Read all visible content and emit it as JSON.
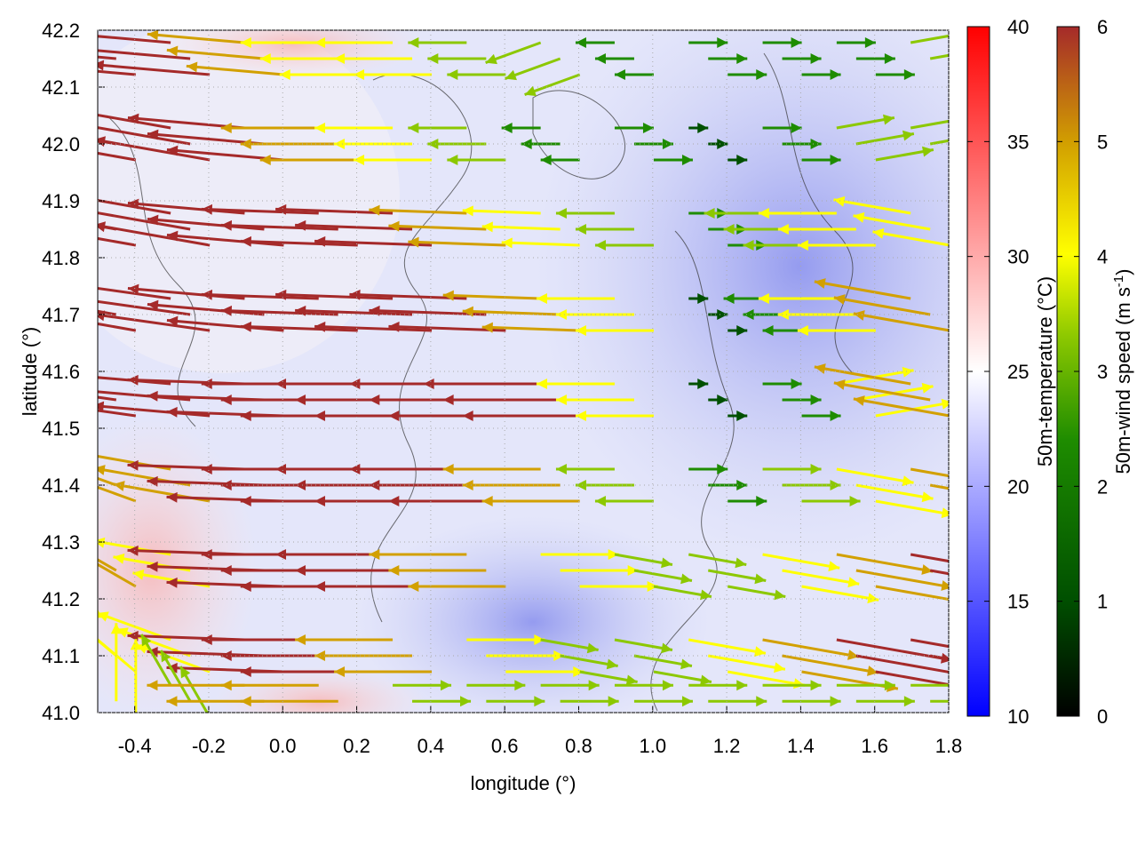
{
  "chart_data": {
    "type": "vector-field-heatmap",
    "xlabel": "longitude (°)",
    "ylabel": "latitude (°)",
    "xlim": [
      -0.5,
      1.8
    ],
    "ylim": [
      41.0,
      42.2
    ],
    "xticks": [
      "-0.4",
      "-0.2",
      "0.0",
      "0.2",
      "0.4",
      "0.6",
      "0.8",
      "1.0",
      "1.2",
      "1.4",
      "1.6",
      "1.8"
    ],
    "xtick_values": [
      -0.4,
      -0.2,
      0.0,
      0.2,
      0.4,
      0.6,
      0.8,
      1.0,
      1.2,
      1.4,
      1.6,
      1.8
    ],
    "yticks": [
      "41.0",
      "41.1",
      "41.2",
      "41.3",
      "41.4",
      "41.5",
      "41.6",
      "41.7",
      "41.8",
      "41.9",
      "42.0",
      "42.1",
      "42.2"
    ],
    "ytick_values": [
      41.0,
      41.1,
      41.2,
      41.3,
      41.4,
      41.5,
      41.6,
      41.7,
      41.8,
      41.9,
      42.0,
      42.1,
      42.2
    ],
    "colorbar_temperature": {
      "label": "50m-temperature (°C)",
      "range": [
        10,
        40
      ],
      "ticks": [
        "10",
        "15",
        "20",
        "25",
        "30",
        "35",
        "40"
      ],
      "tick_values": [
        10,
        15,
        20,
        25,
        30,
        35,
        40
      ],
      "palette": [
        "#0000ff",
        "#ffffff",
        "#ff0000"
      ]
    },
    "colorbar_wind": {
      "label": "50m-wind speed (m s",
      "label_sup": "-1",
      "label_end": ")",
      "range": [
        0,
        6
      ],
      "ticks": [
        "0",
        "1",
        "2",
        "3",
        "4",
        "5",
        "6"
      ],
      "tick_values": [
        0,
        1,
        2,
        3,
        4,
        5,
        6
      ],
      "palette": [
        "#000000",
        "#005000",
        "#1e8c00",
        "#8cc800",
        "#ffff00",
        "#d2a000",
        "#a52a2a"
      ]
    },
    "vectors": {
      "lon": [
        -0.45,
        -0.25,
        -0.05,
        0.15,
        0.35,
        0.55,
        0.75,
        0.95,
        1.15,
        1.35,
        1.55,
        1.75
      ],
      "lat": [
        42.15,
        42.0,
        41.85,
        41.7,
        41.55,
        41.4,
        41.25,
        41.1,
        41.02
      ],
      "speed": [
        [
          6,
          6,
          5,
          4,
          4,
          3,
          3,
          2,
          2,
          2,
          2,
          3
        ],
        [
          6,
          6,
          6,
          5,
          4,
          3,
          2,
          2,
          1,
          2,
          3,
          3
        ],
        [
          6,
          6,
          6,
          6,
          6,
          5,
          4,
          3,
          2,
          3,
          4,
          4
        ],
        [
          6,
          6,
          6,
          6,
          6,
          6,
          5,
          4,
          1,
          2,
          4,
          5
        ],
        [
          6,
          6,
          6,
          6,
          6,
          6,
          6,
          4,
          1,
          2,
          4,
          5
        ],
        [
          5,
          5,
          6,
          6,
          6,
          6,
          5,
          3,
          2,
          3,
          4,
          5
        ],
        [
          5,
          4,
          6,
          6,
          6,
          5,
          4,
          3,
          3,
          4,
          5,
          6
        ],
        [
          4,
          4,
          6,
          6,
          5,
          4,
          3,
          3,
          4,
          5,
          6,
          6
        ],
        [
          4,
          3,
          5,
          5,
          3,
          3,
          3,
          3,
          3,
          3,
          3,
          3
        ]
      ],
      "direction_deg": [
        [
          175,
          175,
          175,
          180,
          180,
          180,
          200,
          180,
          0,
          0,
          0,
          10
        ],
        [
          170,
          170,
          175,
          180,
          180,
          180,
          180,
          0,
          0,
          0,
          10,
          10
        ],
        [
          170,
          170,
          175,
          178,
          178,
          178,
          178,
          180,
          0,
          180,
          180,
          170
        ],
        [
          170,
          172,
          175,
          178,
          178,
          178,
          178,
          180,
          0,
          180,
          180,
          170
        ],
        [
          172,
          175,
          178,
          180,
          180,
          180,
          180,
          180,
          0,
          0,
          10,
          170
        ],
        [
          160,
          170,
          178,
          180,
          180,
          180,
          180,
          180,
          0,
          0,
          350,
          350
        ],
        [
          150,
          170,
          178,
          180,
          180,
          180,
          0,
          350,
          350,
          350,
          350,
          350
        ],
        [
          140,
          160,
          178,
          180,
          180,
          0,
          350,
          350,
          350,
          350,
          350,
          350
        ],
        [
          90,
          120,
          180,
          180,
          0,
          0,
          0,
          0,
          0,
          0,
          0,
          0
        ]
      ]
    }
  }
}
